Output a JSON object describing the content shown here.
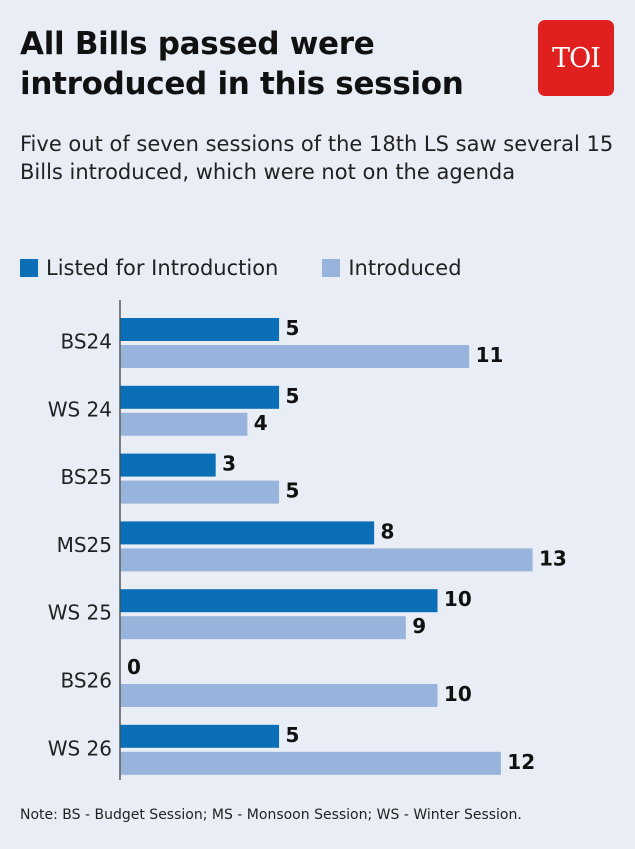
{
  "header": {
    "title": "All Bills passed were introduced in this session",
    "subtitle": "Five out of seven sessions of the 18th LS saw several 15 Bills introduced, which were not on the agenda",
    "logo_text": "TOI",
    "logo_color": "#e0201e"
  },
  "footer": {
    "note": "Note: BS - Budget Session; MS - Monsoon Session; WS - Winter Session."
  },
  "chart_data": {
    "type": "bar",
    "orientation": "horizontal",
    "title": "All Bills passed were introduced in this session",
    "subtitle": "Five out of seven sessions of the 18th LS saw several 15 Bills introduced, which were not on the agenda",
    "categories": [
      "BS24",
      "WS 24",
      "BS25",
      "MS25",
      "WS 25",
      "BS26",
      "WS 26"
    ],
    "series": [
      {
        "name": "Listed for Introduction",
        "color": "#0a6fb6",
        "values": [
          5,
          5,
          3,
          8,
          10,
          0,
          5
        ]
      },
      {
        "name": "Introduced",
        "color": "#98b4dc",
        "values": [
          11,
          4,
          5,
          13,
          9,
          10,
          12
        ]
      }
    ],
    "xlim": [
      0,
      13
    ],
    "grid": false,
    "legend_position": "top-left",
    "data_labels": true
  }
}
